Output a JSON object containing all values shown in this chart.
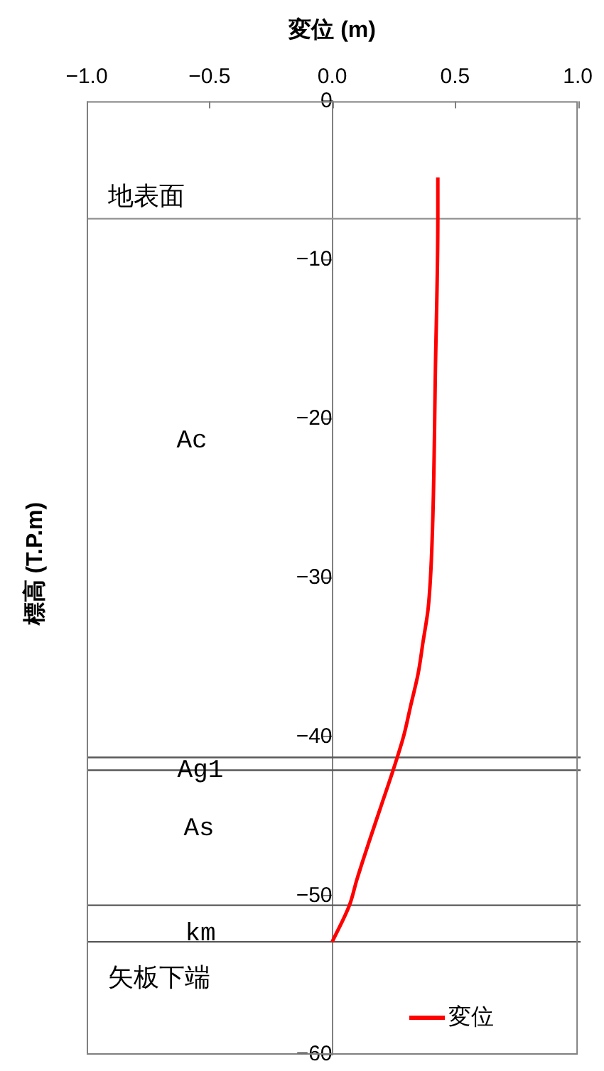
{
  "chart_data": {
    "type": "line",
    "xlabel": "変位 (m)",
    "ylabel": "標高 (T.P.m)",
    "series": [
      {
        "name": "変位",
        "color": "#ff0000",
        "x": [
          0.43,
          0.43,
          0.42,
          0.41,
          0.4,
          0.39,
          0.37,
          0.35,
          0.32,
          0.29,
          0.25,
          0.2,
          0.15,
          0.1,
          0.07,
          0
        ],
        "values": [
          -4.8,
          -7.4,
          -17,
          -26,
          -30,
          -32,
          -34,
          -36,
          -38,
          -40,
          -42,
          -44.3,
          -46.6,
          -49,
          -50.6,
          -52.9
        ]
      }
    ],
    "xlim": [
      -1,
      1
    ],
    "xticks": [
      {
        "value": -1,
        "label": "−1.0"
      },
      {
        "value": -0.5,
        "label": "−0.5"
      },
      {
        "value": 0,
        "label": "0.0"
      },
      {
        "value": 0.5,
        "label": "0.5"
      },
      {
        "value": 1,
        "label": "1.0"
      }
    ],
    "ylim": [
      -60,
      0
    ],
    "yticks": [
      {
        "value": -60,
        "label": "−60"
      },
      {
        "value": -50,
        "label": "−50"
      },
      {
        "value": -40,
        "label": "−40"
      },
      {
        "value": -30,
        "label": "−30"
      },
      {
        "value": -20,
        "label": "−20"
      },
      {
        "value": -10,
        "label": "−10"
      },
      0
    ],
    "ref_lines": [
      {
        "axis": "y",
        "value": -7.4,
        "color": "#999999"
      },
      {
        "axis": "y",
        "value": -41.3,
        "color": "#595959"
      },
      {
        "axis": "y",
        "value": -42.1,
        "color": "#595959"
      },
      {
        "axis": "y",
        "value": -50.6,
        "color": "#595959"
      },
      {
        "axis": "y",
        "value": -52.9,
        "color": "#595959"
      }
    ],
    "annotations": [
      "地表面",
      "Ac",
      "Ag1",
      "As",
      "km",
      "矢板下端"
    ],
    "legend": "bottom right",
    "grid": false,
    "marker": "none",
    "line_style": "solid"
  }
}
